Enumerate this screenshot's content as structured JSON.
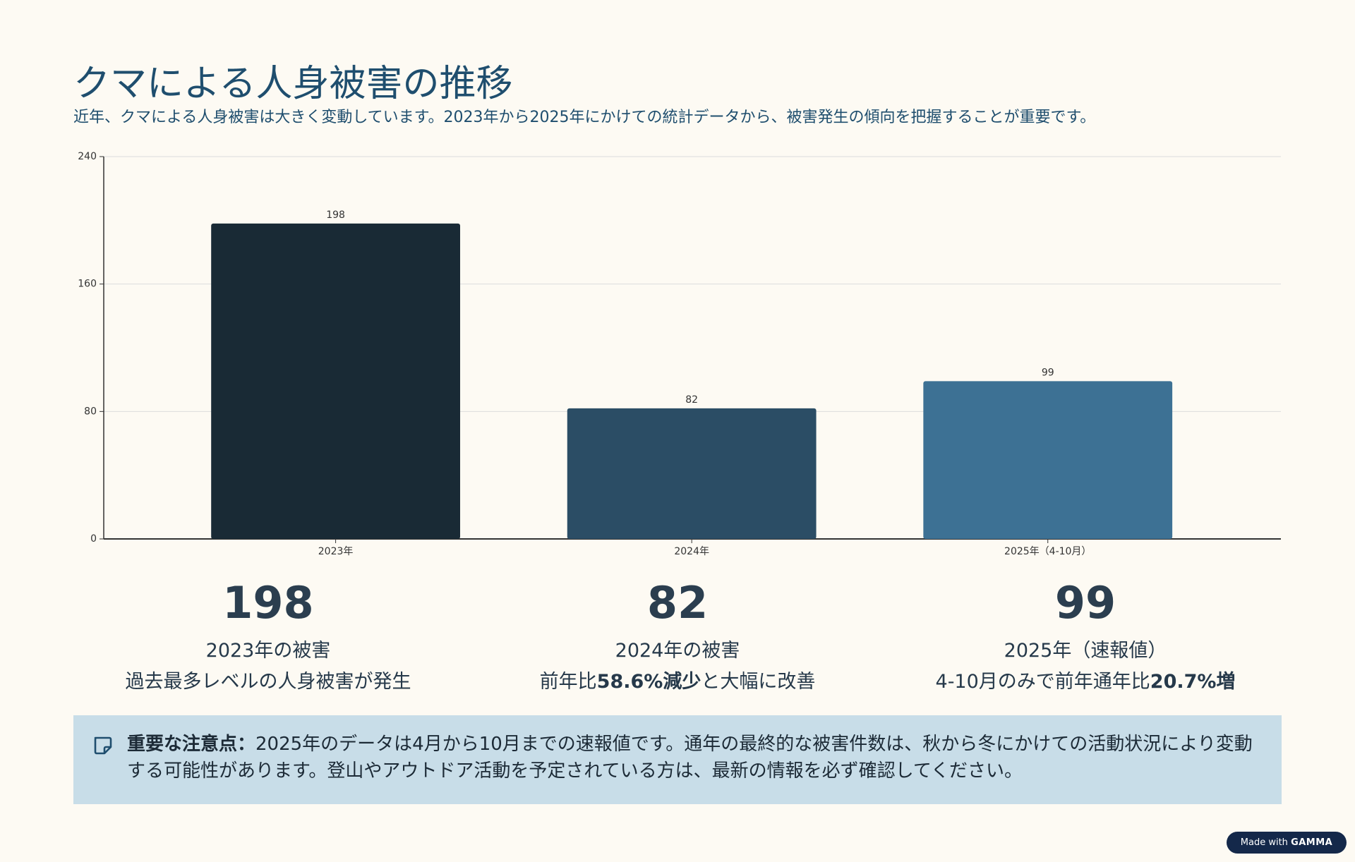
{
  "title": "クマによる人身被害の推移",
  "subtitle": "近年、クマによる人身被害は大きく変動しています。2023年から2025年にかけての統計データから、被害発生の傾向を把握することが重要です。",
  "chart_data": {
    "type": "bar",
    "categories": [
      "2023年",
      "2024年",
      "2025年（4-10月）"
    ],
    "values": [
      198,
      82,
      99
    ],
    "colors": [
      "#192a35",
      "#2b4d65",
      "#3d7194"
    ],
    "ylim": [
      0,
      240
    ],
    "yticks": [
      0,
      80,
      160,
      240
    ],
    "grid": true
  },
  "stats": [
    {
      "label": "2023年の被害",
      "desc": [
        "過去最多レベルの人身被害が発生"
      ]
    },
    {
      "label": "2024年の被害",
      "desc": [
        "前年比",
        "58.6%減少",
        "と大幅に改善"
      ]
    },
    {
      "label": "2025年（速報値）",
      "desc": [
        "4-10月のみで前年通年比",
        "20.7%増"
      ]
    }
  ],
  "note": {
    "heading": "重要な注意点：",
    "text": "2025年のデータは4月から10月までの速報値です。通年の最終的な被害件数は、秋から冬にかけての活動状況により変動する可能性があります。登山やアウトドア活動を予定されている方は、最新の情報を必ず確認してください。"
  },
  "badge": {
    "prefix": "Made with",
    "brand": "GAMMA"
  }
}
